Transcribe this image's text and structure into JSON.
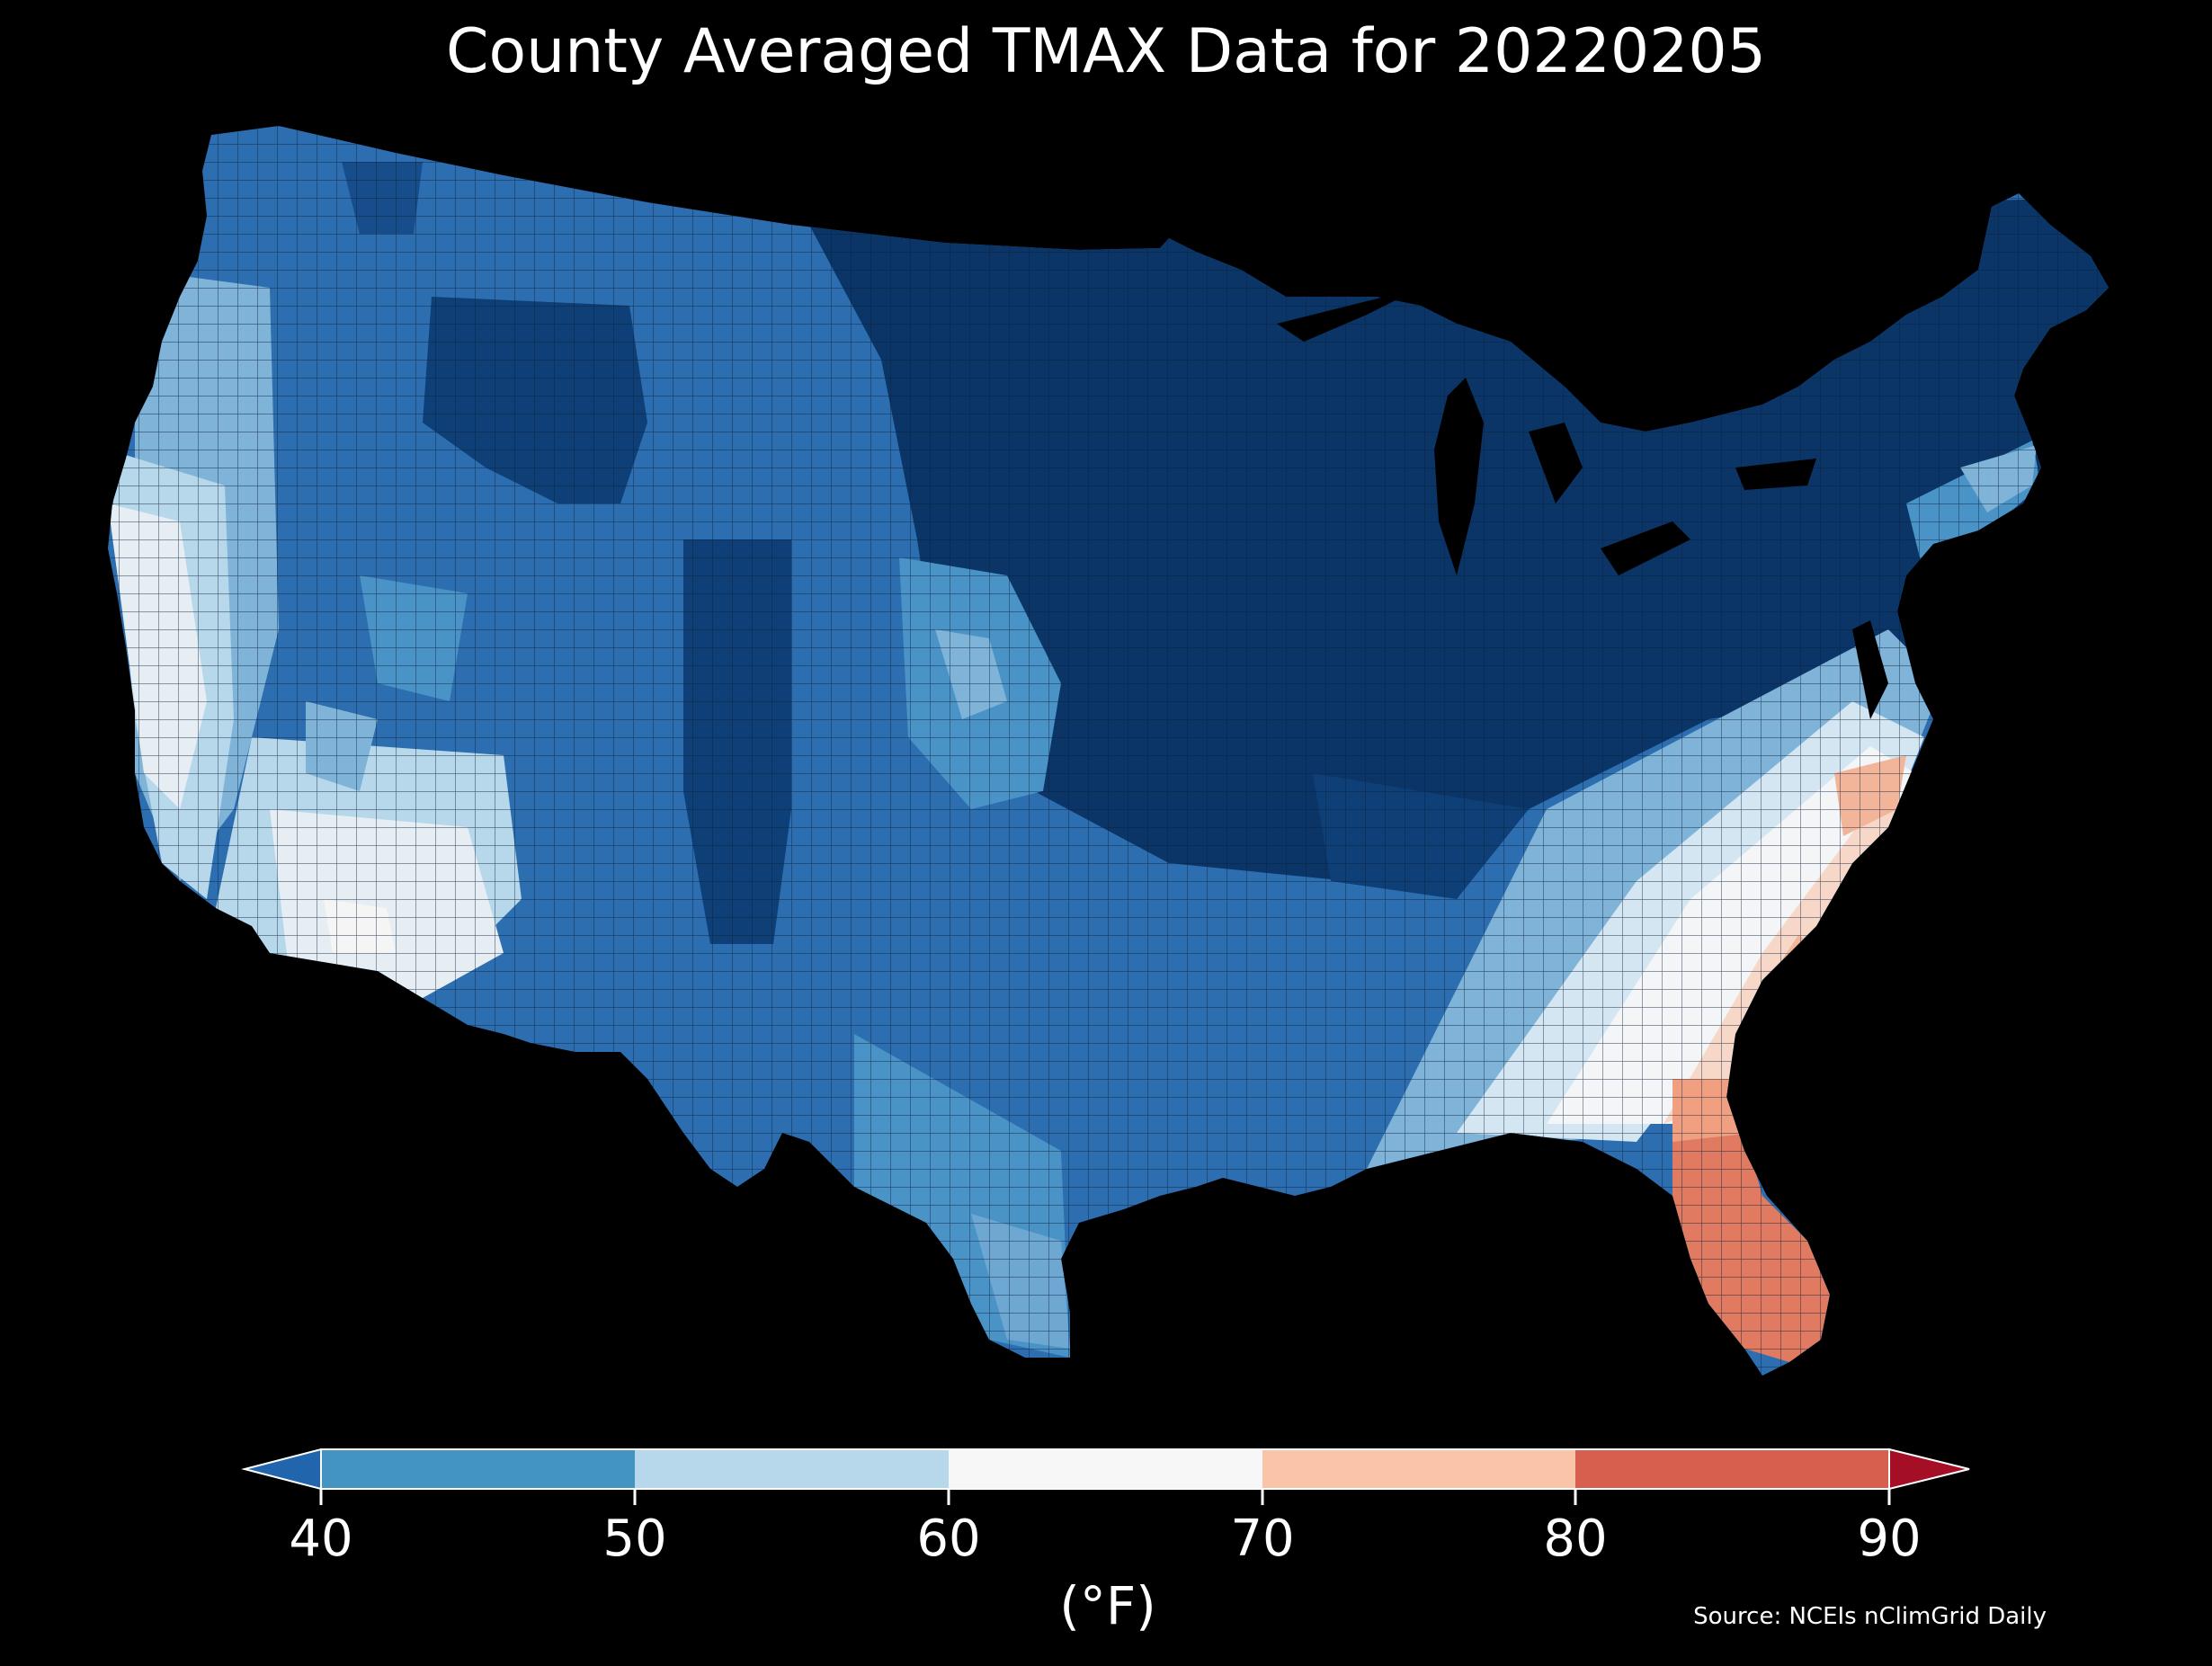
{
  "title": "County Averaged TMAX Data for 20220205",
  "source": "Source: NCEIs nClimGrid Daily",
  "colorbar": {
    "unit_label": "(°F)",
    "ticks": [
      "40",
      "50",
      "60",
      "70",
      "80",
      "90"
    ],
    "bins": [
      {
        "range": "<40",
        "color": "#2166ac"
      },
      {
        "range": "40-50",
        "color": "#4393c3"
      },
      {
        "range": "50-60",
        "color": "#b7d7ea"
      },
      {
        "range": "60-70",
        "color": "#f7f7f7"
      },
      {
        "range": "70-80",
        "color": "#f9c4a8"
      },
      {
        "range": "80-90",
        "color": "#d6604d"
      },
      {
        "range": ">90",
        "color": "#a50f26"
      }
    ]
  },
  "colors": {
    "background": "#000000",
    "county_border": "#0b1f3a",
    "coldest": "#0a3566",
    "cold": "#2c6eb0",
    "cool": "#4a93c6",
    "mild": "#b7d7ea",
    "neutral": "#eef2f5",
    "warm": "#f3b59a",
    "hot": "#e07a60"
  },
  "map": {
    "region": "Contiguous United States",
    "variable": "TMAX",
    "date": "20220205"
  }
}
